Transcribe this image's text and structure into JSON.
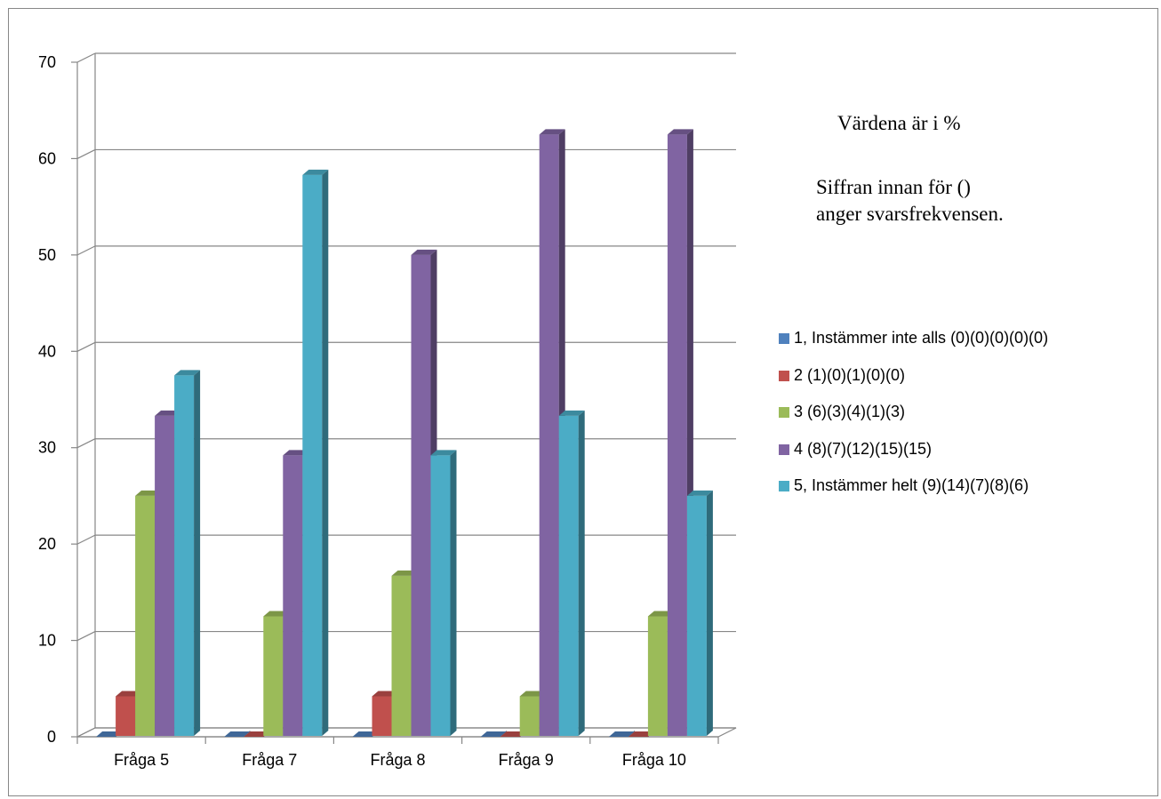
{
  "chart_data": {
    "type": "bar",
    "categories": [
      "Fråga 5",
      "Fråga 7",
      "Fråga 8",
      "Fråga 9",
      "Fråga 10"
    ],
    "series": [
      {
        "name": "1, Instämmer inte alls (0)(0)(0)(0)(0)",
        "values": [
          0,
          0,
          0,
          0,
          0
        ],
        "color": "#4F81BD"
      },
      {
        "name": "2 (1)(0)(1)(0)(0)",
        "values": [
          4.2,
          0,
          4.2,
          0,
          0
        ],
        "color": "#C0504D"
      },
      {
        "name": "3 (6)(3)(4)(1)(3)",
        "values": [
          25,
          12.5,
          16.7,
          4.2,
          12.5
        ],
        "color": "#9BBB59"
      },
      {
        "name": "4 (8)(7)(12)(15)(15)",
        "values": [
          33.3,
          29.2,
          50,
          62.5,
          62.5
        ],
        "color": "#8064A2"
      },
      {
        "name": "5, Instämmer helt (9)(14)(7)(8)(6)",
        "values": [
          37.5,
          58.3,
          29.2,
          33.3,
          25
        ],
        "color": "#4BACC6"
      }
    ],
    "y_ticks": [
      "0",
      "10",
      "20",
      "30",
      "40",
      "50",
      "60",
      "70"
    ],
    "ylim": [
      0,
      70
    ],
    "grid": true,
    "legend_position": "right",
    "style": "3d-clustered-column"
  },
  "notes": {
    "line1": "Värdena är i %",
    "line2": "Siffran innan för ()",
    "line3": "anger svarsfrekvensen."
  }
}
